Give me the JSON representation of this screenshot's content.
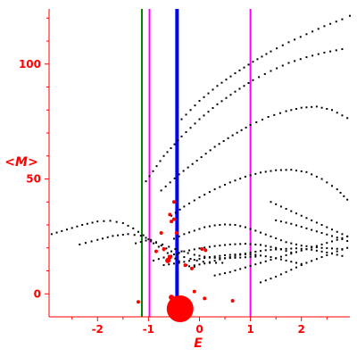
{
  "chart_data": {
    "type": "scatter",
    "xlabel": "E",
    "ylabel": "<M>",
    "xlim": [
      -2.95,
      2.95
    ],
    "ylim": [
      -10,
      124
    ],
    "x_ticks": [
      -2,
      -1,
      0,
      1,
      2
    ],
    "y_ticks": [
      0,
      50,
      100
    ],
    "x_tick_labels": [
      "-2",
      "-1",
      "0",
      "1",
      "2"
    ],
    "y_tick_labels": [
      "0",
      "50",
      "100"
    ],
    "grid": false,
    "vlines": [
      {
        "x": -1.13,
        "color": "#008000"
      },
      {
        "x": -0.98,
        "color": "#ff00ff"
      },
      {
        "x": 1.0,
        "color": "#ff00ff"
      },
      {
        "x": -0.44,
        "color": "#0000ff"
      }
    ],
    "curves": [
      {
        "color": "#000000",
        "points": [
          [
            -2.9,
            26
          ],
          [
            -2.6,
            28
          ],
          [
            -2.3,
            30
          ],
          [
            -2.0,
            31.5
          ],
          [
            -1.75,
            31.8
          ],
          [
            -1.5,
            30.8
          ],
          [
            -1.3,
            28.5
          ],
          [
            -1.1,
            25.5
          ],
          [
            -0.9,
            22
          ],
          [
            -0.7,
            19
          ],
          [
            -0.55,
            16.5
          ],
          [
            -0.4,
            14.2
          ],
          [
            -0.25,
            12.5
          ],
          [
            -0.1,
            11.8
          ]
        ]
      },
      {
        "color": "#000000",
        "points": [
          [
            -2.35,
            21.5
          ],
          [
            -2.0,
            23.5
          ],
          [
            -1.7,
            25.2
          ],
          [
            -1.4,
            26
          ],
          [
            -1.15,
            25.3
          ],
          [
            -0.95,
            23.5
          ],
          [
            -0.75,
            21
          ],
          [
            -0.55,
            18.5
          ],
          [
            -0.3,
            16
          ],
          [
            -0.05,
            14.5
          ],
          [
            0.2,
            13.5
          ],
          [
            0.45,
            13.5
          ]
        ]
      },
      {
        "color": "#000000",
        "points": [
          [
            -1.25,
            22
          ],
          [
            -1.05,
            23.2
          ],
          [
            -0.85,
            22.5
          ],
          [
            -0.6,
            20.5
          ],
          [
            -0.35,
            18.5
          ],
          [
            -0.1,
            17
          ],
          [
            0.2,
            15.8
          ],
          [
            0.5,
            15.5
          ],
          [
            0.8,
            15.8
          ],
          [
            1.1,
            16.2
          ]
        ]
      },
      {
        "color": "#000000",
        "points": [
          [
            -0.9,
            14.5
          ],
          [
            -0.6,
            16.5
          ],
          [
            -0.3,
            18.5
          ],
          [
            0.0,
            19.8
          ],
          [
            0.3,
            20.8
          ],
          [
            0.6,
            21.5
          ],
          [
            0.9,
            21.8
          ],
          [
            1.2,
            21.3
          ],
          [
            1.5,
            20
          ],
          [
            1.8,
            18
          ]
        ]
      },
      {
        "color": "#000000",
        "points": [
          [
            -0.7,
            12.5
          ],
          [
            -0.4,
            13.5
          ],
          [
            -0.1,
            14.8
          ],
          [
            0.2,
            16
          ],
          [
            0.5,
            16.8
          ],
          [
            0.8,
            17.3
          ],
          [
            1.1,
            17
          ],
          [
            1.4,
            16
          ],
          [
            1.7,
            14.5
          ],
          [
            2.0,
            13
          ]
        ]
      },
      {
        "color": "#000000",
        "points": [
          [
            -0.5,
            24
          ],
          [
            -0.3,
            26
          ],
          [
            -0.1,
            27.5
          ],
          [
            0.1,
            29
          ],
          [
            0.3,
            29.8
          ],
          [
            0.5,
            30.2
          ],
          [
            0.7,
            30
          ],
          [
            0.9,
            29
          ],
          [
            1.1,
            27.5
          ],
          [
            1.4,
            25
          ],
          [
            1.7,
            22.5
          ],
          [
            2.0,
            21
          ],
          [
            2.4,
            20
          ],
          [
            2.8,
            19.5
          ]
        ]
      },
      {
        "color": "#000000",
        "points": [
          [
            -0.55,
            34
          ],
          [
            -0.3,
            38
          ],
          [
            0.0,
            42
          ],
          [
            0.3,
            45.5
          ],
          [
            0.6,
            48.5
          ],
          [
            0.9,
            51
          ],
          [
            1.2,
            52.8
          ],
          [
            1.5,
            53.8
          ],
          [
            1.8,
            54
          ],
          [
            2.1,
            53
          ],
          [
            2.4,
            50
          ],
          [
            2.7,
            45.5
          ],
          [
            2.9,
            41
          ]
        ]
      },
      {
        "color": "#000000",
        "points": [
          [
            -0.75,
            45
          ],
          [
            -0.4,
            52
          ],
          [
            -0.05,
            58
          ],
          [
            0.3,
            64
          ],
          [
            0.65,
            69
          ],
          [
            1.0,
            73.5
          ],
          [
            1.35,
            77
          ],
          [
            1.7,
            79.5
          ],
          [
            2.0,
            81
          ],
          [
            2.3,
            81.5
          ],
          [
            2.6,
            80
          ],
          [
            2.9,
            76.5
          ]
        ]
      },
      {
        "color": "#000000",
        "points": [
          [
            -1.05,
            49
          ],
          [
            -0.7,
            60
          ],
          [
            -0.35,
            68.5
          ],
          [
            0.0,
            76
          ],
          [
            0.35,
            82.5
          ],
          [
            0.7,
            88
          ],
          [
            1.05,
            93
          ],
          [
            1.4,
            97
          ],
          [
            1.75,
            100.5
          ],
          [
            2.1,
            103
          ],
          [
            2.45,
            105
          ],
          [
            2.8,
            106.5
          ]
        ]
      },
      {
        "color": "#000000",
        "points": [
          [
            -0.35,
            76
          ],
          [
            0.0,
            84
          ],
          [
            0.35,
            90.5
          ],
          [
            0.7,
            96
          ],
          [
            1.05,
            101
          ],
          [
            1.4,
            105.5
          ],
          [
            1.75,
            109.5
          ],
          [
            2.1,
            113
          ],
          [
            2.45,
            116.5
          ],
          [
            2.8,
            119.5
          ],
          [
            2.95,
            121
          ]
        ]
      },
      {
        "color": "#000000",
        "points": [
          [
            -0.2,
            12
          ],
          [
            0.1,
            13.2
          ],
          [
            0.4,
            15
          ],
          [
            0.7,
            16.5
          ],
          [
            1.0,
            18
          ],
          [
            1.3,
            19
          ],
          [
            1.6,
            19.5
          ],
          [
            1.9,
            19.8
          ],
          [
            2.2,
            19.2
          ],
          [
            2.5,
            18
          ],
          [
            2.8,
            16.5
          ]
        ]
      },
      {
        "color": "#000000",
        "points": [
          [
            0.3,
            8
          ],
          [
            0.6,
            9.5
          ],
          [
            0.9,
            11.5
          ],
          [
            1.2,
            13.5
          ],
          [
            1.5,
            15.5
          ],
          [
            1.8,
            17.5
          ],
          [
            2.1,
            19.5
          ],
          [
            2.4,
            21.5
          ],
          [
            2.7,
            23.5
          ],
          [
            2.9,
            25
          ]
        ]
      },
      {
        "color": "#000000",
        "points": [
          [
            1.2,
            5
          ],
          [
            1.5,
            7.5
          ],
          [
            1.8,
            10.5
          ],
          [
            2.1,
            13.5
          ],
          [
            2.4,
            16
          ],
          [
            2.7,
            18.5
          ],
          [
            2.9,
            20
          ]
        ]
      },
      {
        "color": "#000000",
        "points": [
          [
            1.4,
            40
          ],
          [
            1.7,
            37
          ],
          [
            2.0,
            34
          ],
          [
            2.3,
            31
          ],
          [
            2.6,
            28
          ],
          [
            2.9,
            25
          ]
        ]
      },
      {
        "color": "#000000",
        "points": [
          [
            1.5,
            32
          ],
          [
            1.8,
            30.5
          ],
          [
            2.1,
            28.5
          ],
          [
            2.4,
            26.5
          ],
          [
            2.7,
            24.5
          ],
          [
            2.9,
            23
          ]
        ]
      }
    ],
    "red_points": [
      {
        "x": -0.38,
        "y": -6.5,
        "size": 15
      },
      {
        "x": -0.55,
        "y": -1.5,
        "size": 3
      },
      {
        "x": -1.2,
        "y": -3.5,
        "size": 2
      },
      {
        "x": -0.1,
        "y": 1,
        "size": 2
      },
      {
        "x": 0.1,
        "y": -2,
        "size": 2
      },
      {
        "x": 0.65,
        "y": -3,
        "size": 2
      },
      {
        "x": -0.62,
        "y": 14.5,
        "size": 3
      },
      {
        "x": -0.58,
        "y": 16,
        "size": 2.5
      },
      {
        "x": -0.85,
        "y": 18.5,
        "size": 2
      },
      {
        "x": -0.7,
        "y": 19.5,
        "size": 2
      },
      {
        "x": -0.75,
        "y": 26.5,
        "size": 2
      },
      {
        "x": -0.45,
        "y": 26.5,
        "size": 2
      },
      {
        "x": -0.55,
        "y": 31.5,
        "size": 2
      },
      {
        "x": -0.5,
        "y": 32.5,
        "size": 2
      },
      {
        "x": -0.58,
        "y": 34.5,
        "size": 2
      },
      {
        "x": -0.5,
        "y": 40,
        "size": 2
      },
      {
        "x": -0.28,
        "y": 12.5,
        "size": 2
      },
      {
        "x": 0.12,
        "y": 19,
        "size": 2
      },
      {
        "x": 0.05,
        "y": 19.5,
        "size": 2
      },
      {
        "x": -0.15,
        "y": 11,
        "size": 2
      }
    ]
  }
}
